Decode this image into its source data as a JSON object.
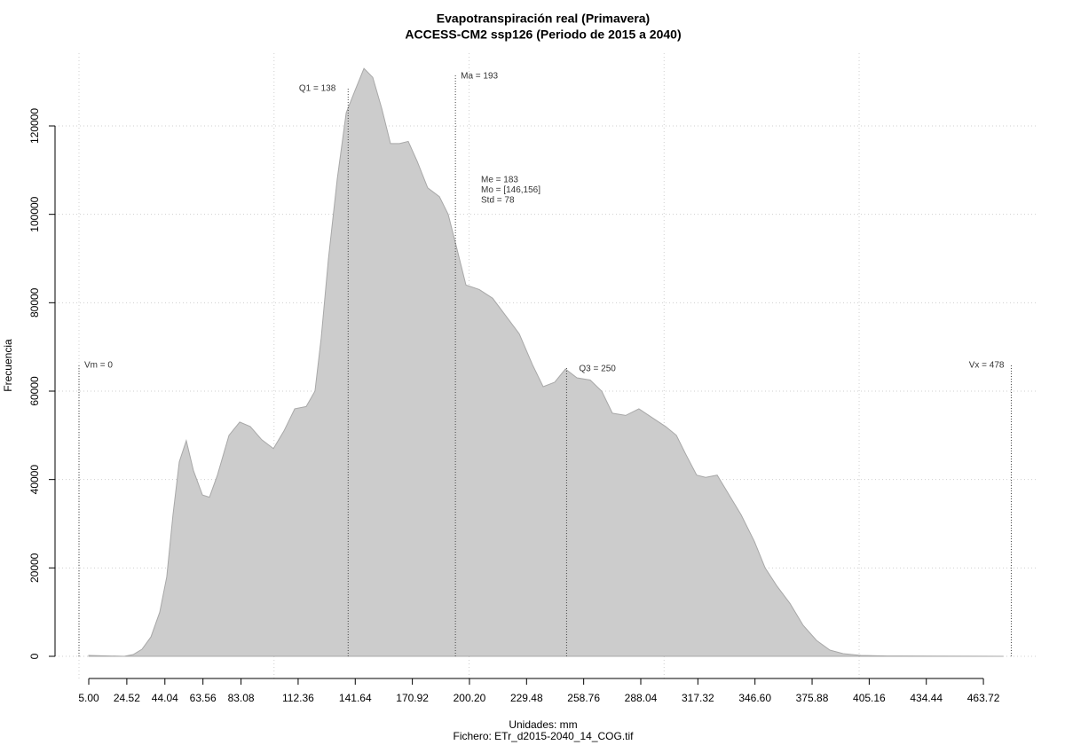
{
  "chart_data": {
    "type": "area",
    "title": "Evapotranspiración real (Primavera)",
    "subtitle": "ACCESS-CM2 ssp126 (Periodo de 2015 a 2040)",
    "x_label": "Unidades: mm",
    "caption": "Fichero: ETr_d2015-2040_14_COG.tif",
    "y_label": "Frecuencia",
    "color": "#cccccc",
    "grid": true,
    "x": [
      5,
      23.2,
      27.8,
      32.3,
      36.9,
      41.4,
      45,
      48.2,
      51.4,
      55,
      58.7,
      63.3,
      66.9,
      71,
      76.9,
      82.4,
      87.8,
      93.7,
      99.7,
      105.1,
      110.6,
      116.5,
      121,
      124.2,
      127.9,
      132.4,
      137,
      141.5,
      146.1,
      150.6,
      155.2,
      159.7,
      164.3,
      168.8,
      173.4,
      178.8,
      184.8,
      189.3,
      193.9,
      198.4,
      205.2,
      212.1,
      218.9,
      225.7,
      232.5,
      238,
      243.9,
      249.4,
      255.3,
      262.1,
      268,
      273.5,
      280.3,
      287.1,
      293.9,
      300.8,
      306.3,
      310.8,
      316.7,
      321.3,
      327.2,
      332.7,
      339.5,
      346.3,
      351.8,
      357.7,
      364.5,
      371.3,
      378.2,
      385,
      391.8,
      400.9,
      414.6,
      437.3,
      460.1,
      473.7
    ],
    "values": [
      200,
      0,
      400,
      1600,
      4400,
      10000,
      18000,
      32000,
      44000,
      48800,
      42000,
      36500,
      36000,
      41000,
      50000,
      53000,
      52000,
      49000,
      47000,
      51000,
      56000,
      56500,
      60000,
      72000,
      90000,
      108000,
      123000,
      128000,
      133000,
      131000,
      124000,
      116000,
      116000,
      116500,
      112000,
      106000,
      104000,
      100000,
      92000,
      84000,
      83000,
      81000,
      77000,
      73000,
      66000,
      61000,
      62000,
      65000,
      63000,
      62500,
      60000,
      55000,
      54500,
      56000,
      54000,
      52000,
      50000,
      46000,
      41000,
      40500,
      41000,
      37000,
      32000,
      26000,
      20000,
      16000,
      12000,
      7000,
      3600,
      1400,
      600,
      200,
      80,
      30,
      10,
      0
    ],
    "xlim": [
      -12.29,
      491.9
    ],
    "ylim": [
      -5619,
      136455
    ],
    "xticks": [
      {
        "value": 5,
        "label": "5.00"
      },
      24.52,
      44.04,
      63.56,
      83.08,
      112.36,
      141.64,
      170.92,
      {
        "value": 200.2,
        "label": "200.20"
      },
      229.48,
      258.76,
      288.04,
      317.32,
      {
        "value": 346.6,
        "label": "346.60"
      },
      375.88,
      405.16,
      434.44,
      463.72
    ],
    "xgrid": [
      0,
      100,
      200,
      300,
      400
    ],
    "yticks": [
      0,
      20000,
      40000,
      60000,
      80000,
      100000,
      120000
    ],
    "markers": [
      {
        "label": "Vm = 0",
        "value": 0
      },
      {
        "label": "Q1 = 138",
        "value": 138
      },
      {
        "label": "Ma = 193",
        "value": 193
      },
      {
        "label": "Q3 = 250",
        "value": 250
      },
      {
        "label": "Vx = 478",
        "value": 478
      }
    ],
    "stats": [
      "Me = 183",
      "Mo = [146,156]",
      "Std = 78"
    ]
  }
}
